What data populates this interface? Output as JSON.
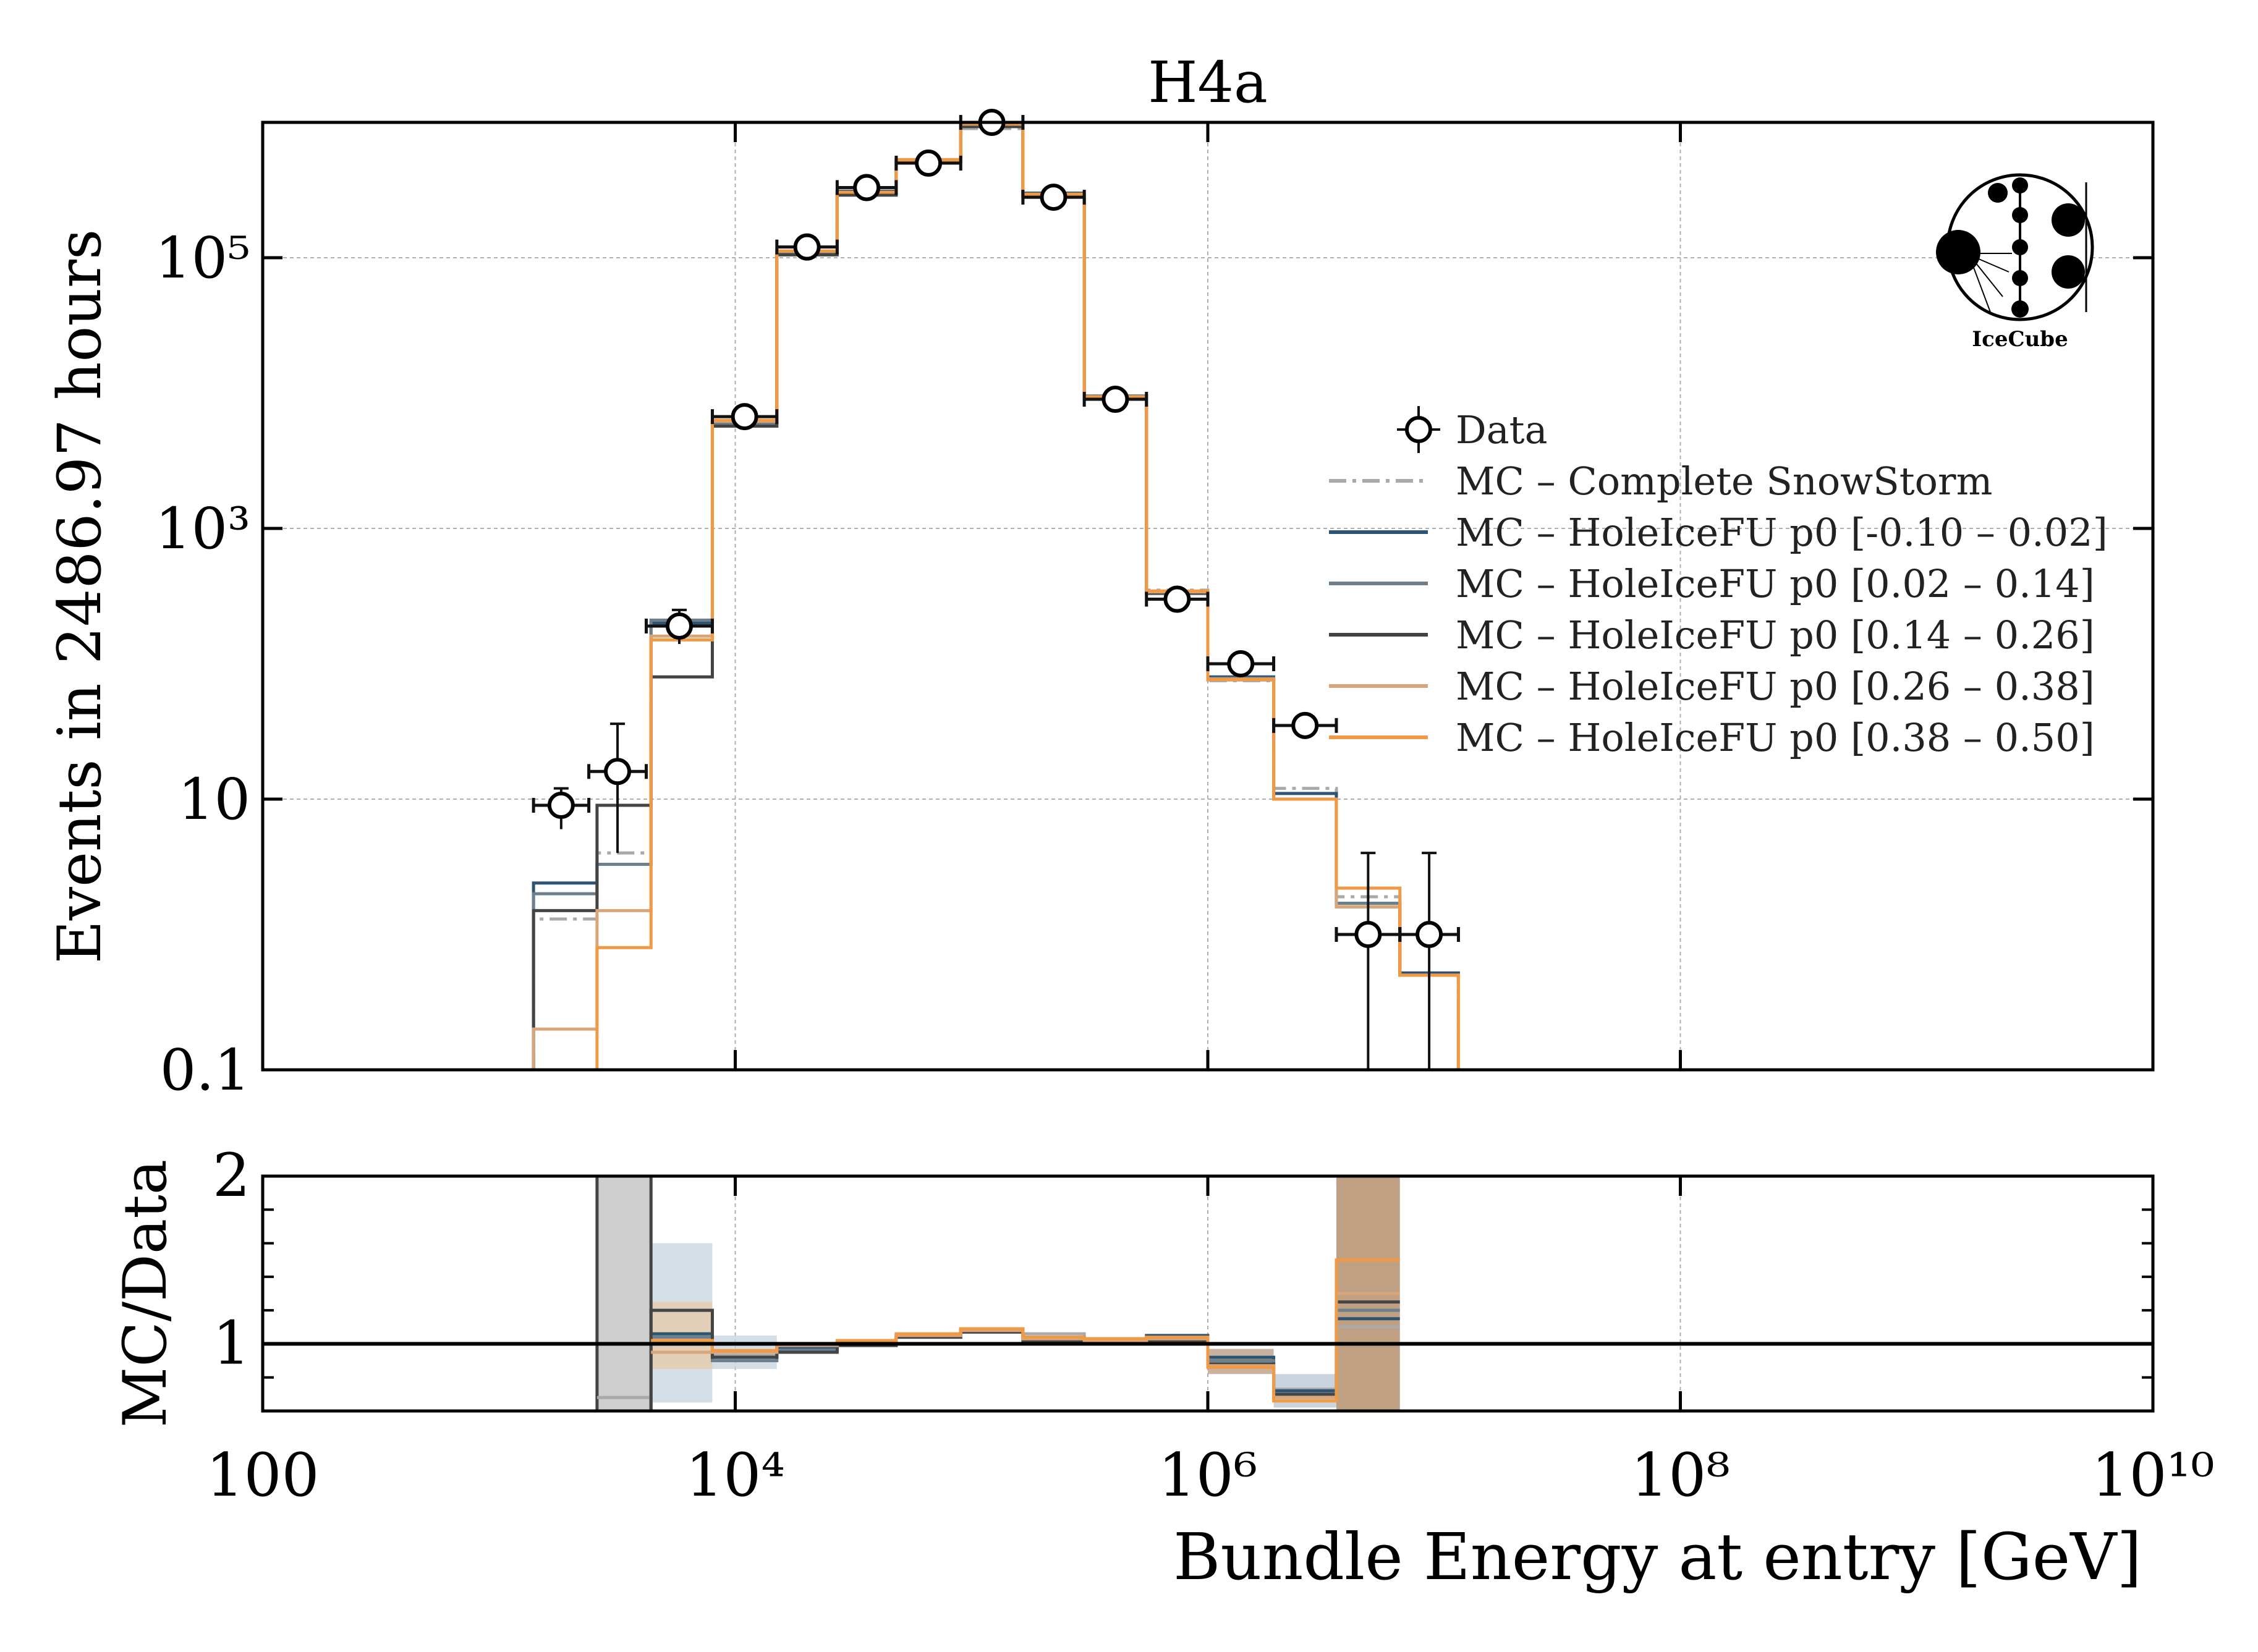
{
  "chart_data": [
    {
      "type": "step-histogram",
      "title": "H4a",
      "xlabel": "",
      "ylabel": "Events in 2486.97 hours",
      "xscale": "log",
      "yscale": "log",
      "xlim": [
        100,
        10000000000
      ],
      "ylim": [
        0.1,
        1000000
      ],
      "yticks": [
        {
          "value": 0.1,
          "label": "0.1"
        },
        {
          "value": 10,
          "label": "10"
        },
        {
          "value": 1000,
          "label": "10³"
        },
        {
          "value": 100000,
          "label": "10⁵"
        }
      ],
      "grid": true,
      "legend_position": "right",
      "data": {
        "name": "Data",
        "bins": [
          {
            "lo": 1400,
            "hi": 2400,
            "y": 9,
            "yerr": [
              3,
              3
            ]
          },
          {
            "lo": 2400,
            "hi": 4200,
            "y": 16,
            "yerr": [
              12,
              20
            ]
          },
          {
            "lo": 4200,
            "hi": 8000,
            "y": 190,
            "yerr": [
              50,
              60
            ]
          },
          {
            "lo": 8000,
            "hi": 15000,
            "y": 6700
          },
          {
            "lo": 15000,
            "hi": 27000,
            "y": 120000
          },
          {
            "lo": 27000,
            "hi": 48000,
            "y": 330000
          },
          {
            "lo": 48000,
            "hi": 90000,
            "y": 500000
          },
          {
            "lo": 90000,
            "hi": 165000,
            "y": 1000000
          },
          {
            "lo": 165000,
            "hi": 300000,
            "y": 280000
          },
          {
            "lo": 300000,
            "hi": 550000,
            "y": 9000
          },
          {
            "lo": 550000,
            "hi": 1000000,
            "y": 300
          },
          {
            "lo": 1000000,
            "hi": 1900000,
            "y": 100
          },
          {
            "lo": 1900000,
            "hi": 3500000,
            "y": 35
          },
          {
            "lo": 3500000,
            "hi": 6500000,
            "y": 1,
            "yerr": [
              0.9,
              3
            ]
          },
          {
            "lo": 6500000,
            "hi": 11500000,
            "y": 1,
            "yerr": [
              0.9,
              3
            ]
          }
        ]
      },
      "edges": [
        1400,
        2600,
        4400,
        8000,
        15000,
        27000,
        48000,
        90000,
        165000,
        300000,
        550000,
        1000000,
        1900000,
        3500000,
        6500000,
        11500000,
        18500000
      ],
      "series": [
        {
          "name": "MC – Complete SnowStorm",
          "color": "#a9a9a9",
          "dash": "dashdot",
          "values": [
            1.3,
            4,
            190,
            6000,
            110000,
            300000,
            520000,
            900000,
            280000,
            9500,
            350,
            75,
            12,
            1.9,
            0.5,
            0.1
          ]
        },
        {
          "name": "MC – HoleIceFU p0 [-0.10 – 0.02]",
          "color": "#2e5473",
          "values": [
            2.4,
            3.3,
            200,
            6200,
            110000,
            310000,
            530000,
            1000000,
            300000,
            9500,
            340,
            80,
            11,
            1.7,
            0.52,
            0.1
          ]
        },
        {
          "name": "MC – HoleIceFU p0 [0.02 – 0.14]",
          "color": "#6d7f8d",
          "values": [
            2,
            3.3,
            210,
            6000,
            110000,
            300000,
            520000,
            950000,
            290000,
            9300,
            330,
            78,
            10,
            1.7,
            0.5,
            0.1
          ]
        },
        {
          "name": "MC – HoleIceFU p0 [0.14 – 0.26]",
          "color": "#444444",
          "values": [
            1.5,
            9,
            80,
            5700,
            105000,
            290000,
            510000,
            930000,
            285000,
            9200,
            335,
            76,
            10,
            1.6,
            0.5,
            0.1
          ]
        },
        {
          "name": "MC – HoleIceFU p0 [0.26 – 0.38]",
          "color": "#d9a679",
          "values": [
            0.2,
            1.5,
            160,
            6200,
            112000,
            305000,
            525000,
            970000,
            292000,
            9400,
            340,
            76,
            10,
            1.6,
            0.5,
            0.1
          ]
        },
        {
          "name": "MC – HoleIceFU p0 [0.38 – 0.50]",
          "color": "#f09a45",
          "values": [
            0.05,
            0.8,
            150,
            6300,
            112000,
            305000,
            530000,
            980000,
            295000,
            9400,
            345,
            77,
            10,
            2.2,
            0.5,
            0.1
          ]
        }
      ]
    },
    {
      "type": "step-ratio",
      "xlabel": "Bundle Energy at entry [GeV]",
      "ylabel": "MC/Data",
      "xscale": "log",
      "xlim": [
        100,
        10000000000
      ],
      "ylim": [
        0.6,
        2
      ],
      "yticks": [
        {
          "value": 1,
          "label": "1"
        },
        {
          "value": 2,
          "label": "2"
        }
      ],
      "xticks": [
        {
          "value": 100,
          "label": "100"
        },
        {
          "value": 10000,
          "label": "10⁴"
        },
        {
          "value": 1000000,
          "label": "10⁶"
        },
        {
          "value": 100000000,
          "label": "10⁸"
        },
        {
          "value": 10000000000,
          "label": "10¹⁰"
        }
      ],
      "reference_line": 1,
      "edges": [
        2600,
        4400,
        8000,
        15000,
        27000,
        48000,
        90000,
        165000,
        300000,
        550000,
        1000000,
        1900000,
        3500000,
        6500000,
        11500000
      ],
      "bands": [
        {
          "lo": 2600,
          "hi": 4400,
          "y0": 0.6,
          "y1": 2,
          "color": "#bdbdbd"
        },
        {
          "lo": 4400,
          "hi": 8000,
          "y0": 0.65,
          "y1": 1.6,
          "color": "#c5d3df"
        },
        {
          "lo": 4400,
          "hi": 8000,
          "y0": 0.85,
          "y1": 1.25,
          "color": "#e8c9a8"
        },
        {
          "lo": 8000,
          "hi": 15000,
          "y0": 0.85,
          "y1": 1.05,
          "color": "#c5d3df"
        },
        {
          "lo": 1000000,
          "hi": 1900000,
          "y0": 0.82,
          "y1": 0.97,
          "color": "#b89a7e"
        },
        {
          "lo": 1900000,
          "hi": 3500000,
          "y0": 0.62,
          "y1": 0.82,
          "color": "#b7c6d3"
        },
        {
          "lo": 3500000,
          "hi": 6500000,
          "y0": 0.6,
          "y1": 2,
          "color": "#a9805a"
        }
      ],
      "series": [
        {
          "name": "MC – Complete SnowStorm",
          "color": "#a9a9a9",
          "values": [
            0.68,
            1.05,
            0.93,
            0.97,
            1.0,
            1.04,
            1.08,
            1.06,
            1.02,
            1.03,
            0.9,
            0.73,
            1.1,
            null
          ]
        },
        {
          "name": "MC – HoleIceFU p0 [-0.10 – 0.02]",
          "color": "#2e5473",
          "values": [
            null,
            1.06,
            0.92,
            0.98,
            1.01,
            1.05,
            1.09,
            1.04,
            1.03,
            1.05,
            0.92,
            0.72,
            1.15,
            null
          ]
        },
        {
          "name": "MC – HoleIceFU p0 [0.02 – 0.14]",
          "color": "#6d7f8d",
          "values": [
            null,
            1.04,
            0.9,
            0.96,
            1.0,
            1.04,
            1.08,
            1.03,
            1.02,
            1.03,
            0.9,
            0.7,
            1.2,
            null
          ]
        },
        {
          "name": "MC – HoleIceFU p0 [0.14 – 0.26]",
          "color": "#444444",
          "values": [
            0.6,
            1.2,
            0.92,
            0.95,
            0.99,
            1.04,
            1.07,
            1.02,
            1.01,
            1.02,
            0.88,
            0.7,
            1.25,
            null
          ]
        },
        {
          "name": "MC – HoleIceFU p0 [0.26 – 0.38]",
          "color": "#d9a679",
          "values": [
            null,
            0.95,
            0.95,
            0.99,
            1.01,
            1.05,
            1.08,
            1.03,
            1.02,
            1.03,
            0.87,
            0.68,
            1.3,
            null
          ]
        },
        {
          "name": "MC – HoleIceFU p0 [0.38 – 0.50]",
          "color": "#f09a45",
          "values": [
            null,
            1.02,
            0.96,
            1.0,
            1.02,
            1.06,
            1.09,
            1.04,
            1.03,
            1.04,
            0.86,
            0.66,
            1.5,
            null
          ]
        }
      ]
    }
  ],
  "legend": {
    "entries": [
      {
        "label": "Data",
        "kind": "marker"
      },
      {
        "label": "MC – Complete SnowStorm",
        "color": "#a9a9a9",
        "kind": "dashdot"
      },
      {
        "label": "MC – HoleIceFU p0 [-0.10 – 0.02]",
        "color": "#2e5473",
        "kind": "line"
      },
      {
        "label": "MC – HoleIceFU p0 [0.02 – 0.14]",
        "color": "#6d7f8d",
        "kind": "line"
      },
      {
        "label": "MC – HoleIceFU p0 [0.14 – 0.26]",
        "color": "#444444",
        "kind": "line"
      },
      {
        "label": "MC – HoleIceFU p0 [0.26 – 0.38]",
        "color": "#d9a679",
        "kind": "line"
      },
      {
        "label": "MC – HoleIceFU p0 [0.38 – 0.50]",
        "color": "#f09a45",
        "kind": "line"
      }
    ]
  },
  "logo": {
    "icon": "icecube-logo-icon",
    "text": "IceCube"
  }
}
